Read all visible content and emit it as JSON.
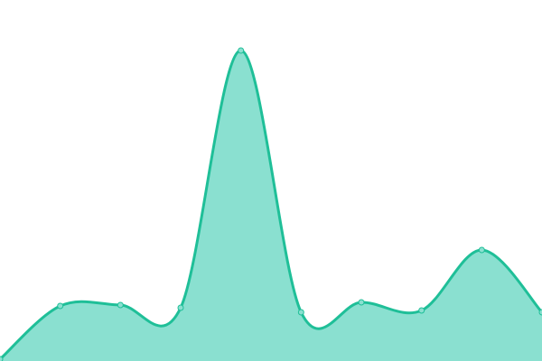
{
  "chart_data": {
    "type": "area",
    "title": "",
    "xlabel": "",
    "ylabel": "",
    "x": [
      0,
      1,
      2,
      3,
      4,
      5,
      6,
      7,
      8,
      9
    ],
    "values": [
      2,
      61,
      62,
      59,
      344,
      54,
      65,
      56,
      123,
      54
    ],
    "ylim": [
      0,
      400
    ],
    "grid": false,
    "axes_visible": false,
    "curve": "smooth",
    "colors": {
      "line": "#1fbf98",
      "fill": "#8ae0d0",
      "point_fill": "#8ae0d0",
      "point_stroke": "#1fbf98"
    }
  }
}
